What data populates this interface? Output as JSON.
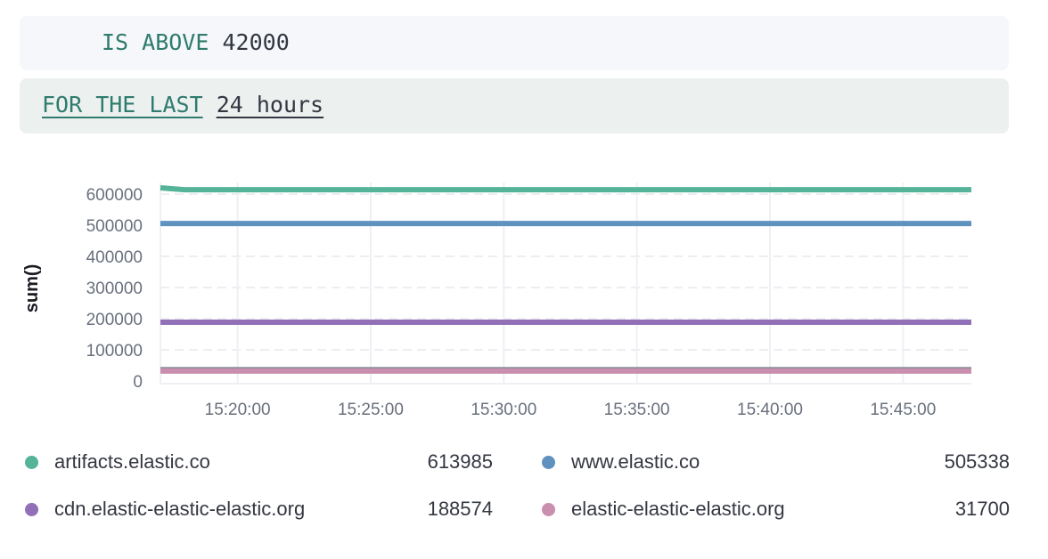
{
  "condition": {
    "operator_label": "IS ABOVE",
    "threshold_value": "42000"
  },
  "time_window": {
    "label": "FOR THE LAST",
    "value": "24 hours"
  },
  "chart_data": {
    "type": "line",
    "ylabel": "sum()",
    "xlabel": "",
    "ylim": [
      0,
      620000
    ],
    "xlim": [
      "15:17:06",
      "15:47:34"
    ],
    "yticks": [
      "0",
      "100000",
      "200000",
      "300000",
      "400000",
      "500000",
      "600000"
    ],
    "xticks": [
      "15:20:00",
      "15:25:00",
      "15:30:00",
      "15:35:00",
      "15:40:00",
      "15:45:00"
    ],
    "grid": true,
    "threshold": {
      "value": 42000,
      "color": "#98a2b3"
    },
    "series": [
      {
        "name": "artifacts.elastic.co",
        "color": "#54b399",
        "x": [
          "15:17:06",
          "15:18:00",
          "15:47:34"
        ],
        "y": [
          620000,
          613985,
          613985
        ],
        "legend_value": "613985"
      },
      {
        "name": "www.elastic.co",
        "color": "#6092c0",
        "x": [
          "15:17:06",
          "15:47:34"
        ],
        "y": [
          505338,
          505338
        ],
        "legend_value": "505338"
      },
      {
        "name": "cdn.elastic-elastic-elastic.org",
        "color": "#9170b8",
        "x": [
          "15:17:06",
          "15:47:34"
        ],
        "y": [
          188574,
          188574
        ],
        "legend_value": "188574"
      },
      {
        "name": "elastic-elastic-elastic.org",
        "color": "#ca8eae",
        "x": [
          "15:17:06",
          "15:47:34"
        ],
        "y": [
          31700,
          31700
        ],
        "legend_value": "31700"
      }
    ]
  }
}
